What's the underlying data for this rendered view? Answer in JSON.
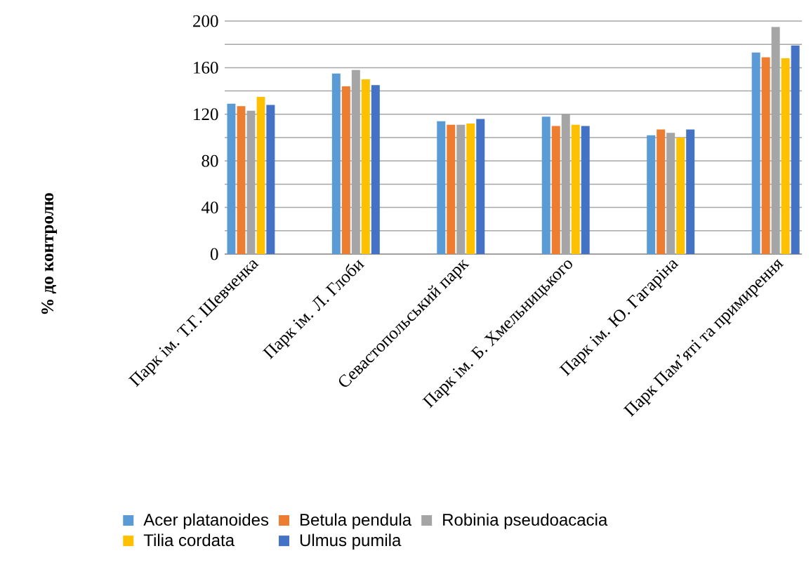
{
  "chart_data": {
    "type": "bar",
    "ylabel": "% до контролю",
    "categories": [
      "Парк ім. Т.Г. Шевченка",
      "Парк ім. Л. Глоби",
      "Севастопольський парк",
      "Парк ім. Б. Хмельницького",
      "Парк ім. Ю. Гагаріна",
      "Парк Пам’яті та примирення"
    ],
    "series": [
      {
        "name": "Acer platanoides",
        "color": "#5b9bd5",
        "values": [
          129,
          155,
          114,
          118,
          102,
          173
        ]
      },
      {
        "name": "Betula pendula",
        "color": "#ed7d31",
        "values": [
          127,
          144,
          111,
          110,
          107,
          169
        ]
      },
      {
        "name": "Robinia pseudoacacia",
        "color": "#a5a5a5",
        "values": [
          123,
          158,
          111,
          120,
          104,
          195
        ]
      },
      {
        "name": "Tilia cordata",
        "color": "#ffc000",
        "values": [
          135,
          150,
          112,
          111,
          100,
          168
        ]
      },
      {
        "name": "Ulmus pumila",
        "color": "#4472c4",
        "values": [
          128,
          145,
          116,
          110,
          107,
          179
        ]
      }
    ],
    "ylim": [
      0,
      200
    ],
    "yticks": [
      0,
      {
        "value": 20,
        "label": null
      },
      40,
      {
        "value": 60,
        "label": null
      },
      80,
      {
        "value": 100,
        "label": null
      },
      120,
      {
        "value": 140,
        "label": null
      },
      160,
      {
        "value": 180,
        "label": null
      },
      200
    ],
    "grid": "y",
    "legend": "bottom"
  }
}
